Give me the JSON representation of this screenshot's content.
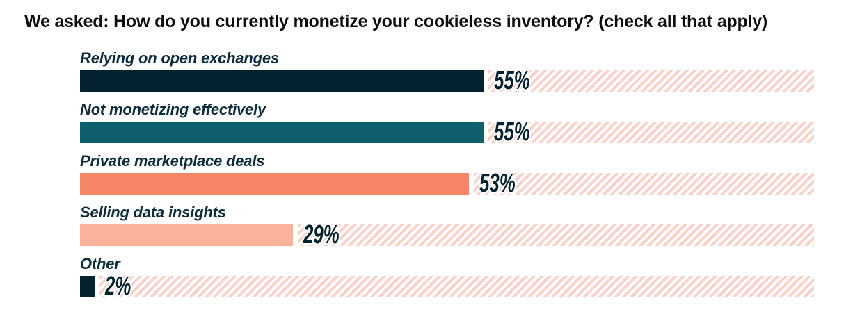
{
  "title": "We asked: How do you currently monetize your cookieless inventory? (check all that apply)",
  "chart_data": {
    "type": "bar",
    "orientation": "horizontal",
    "title": "We asked: How do you currently monetize your cookieless inventory? (check all that apply)",
    "categories": [
      "Relying on open exchanges",
      "Not monetizing effectively",
      "Private marketplace deals",
      "Selling data insights",
      "Other"
    ],
    "values": [
      55,
      55,
      53,
      29,
      2
    ],
    "value_labels": [
      "55%",
      "55%",
      "53%",
      "29%",
      "2%"
    ],
    "bar_colors": [
      "#04222f",
      "#0e5e6e",
      "#f68466",
      "#fab29a",
      "#04222f"
    ],
    "track_color": "#fad1c8",
    "label_color": "#0b2c3c",
    "value_label_color": "#04222f",
    "xlim": [
      0,
      100
    ],
    "xlabel": "",
    "ylabel": "",
    "grid": false,
    "legend": false,
    "track_style": "diagonal-stripes-to-100%"
  }
}
